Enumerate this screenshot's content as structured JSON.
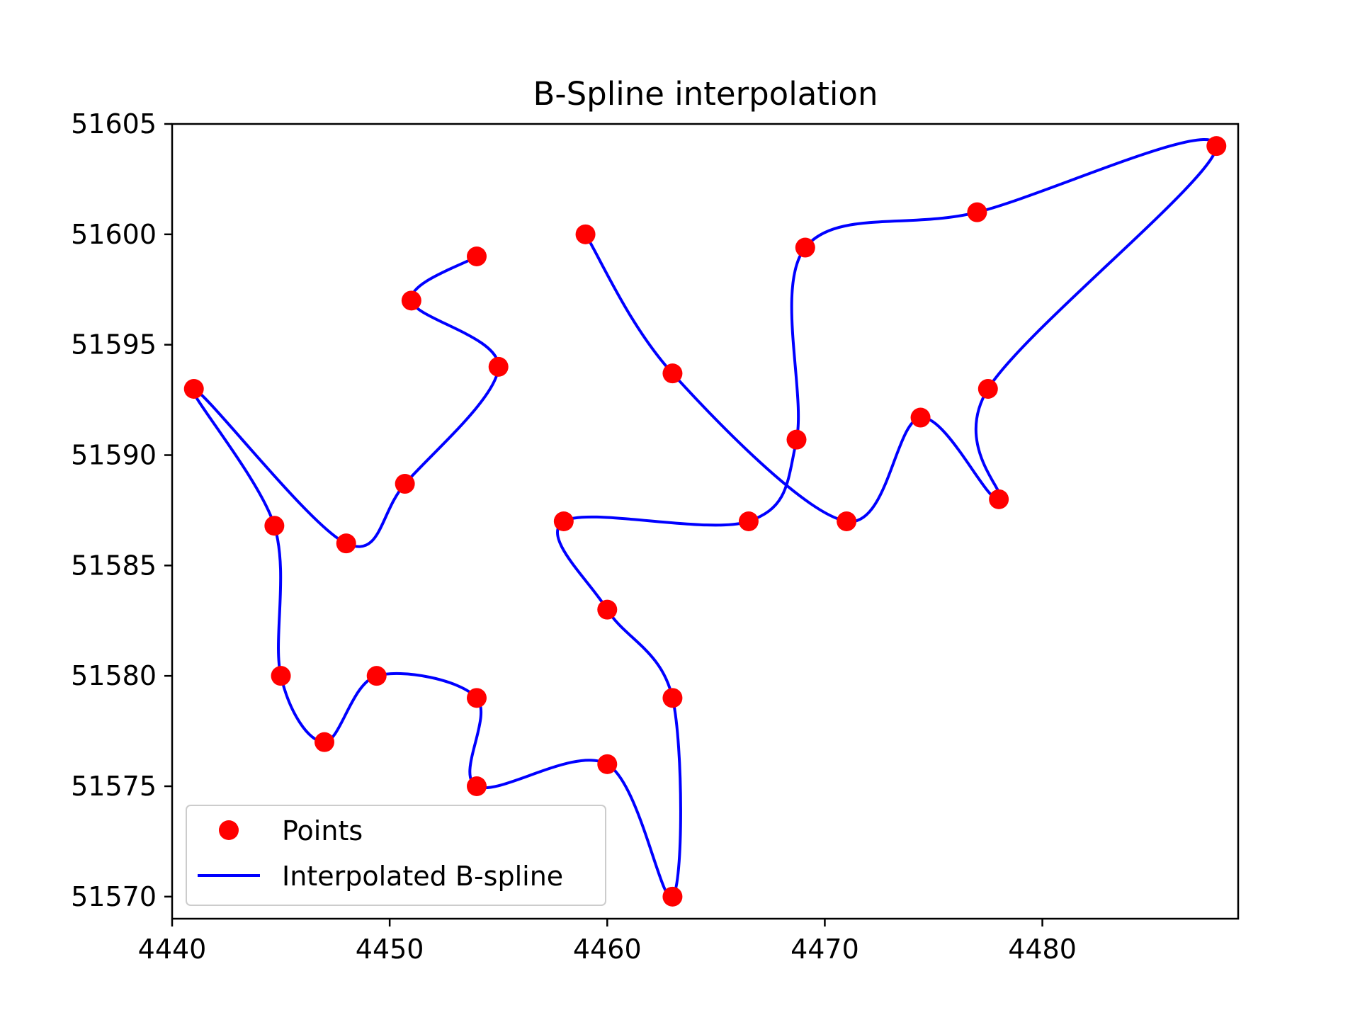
{
  "chart_data": {
    "type": "line",
    "title": "B-Spline interpolation",
    "xlabel": "",
    "ylabel": "",
    "xlim": [
      4440,
      4489
    ],
    "ylim": [
      51569,
      51605
    ],
    "xticks": [
      4440,
      4450,
      4460,
      4470,
      4480
    ],
    "yticks": [
      51570,
      51575,
      51580,
      51585,
      51590,
      51595,
      51600,
      51605
    ],
    "grid": false,
    "legend_position": "lower-left",
    "colors": {
      "points": "#ff0000",
      "spline": "#0000ff"
    },
    "series": [
      {
        "name": "Points",
        "kind": "scatter",
        "points": [
          [
            4441.0,
            51593.0
          ],
          [
            4448.0,
            51586.0
          ],
          [
            4450.7,
            51588.7
          ],
          [
            4455.0,
            51594.0
          ],
          [
            4451.0,
            51597.0
          ],
          [
            4454.0,
            51599.0
          ],
          [
            4444.7,
            51586.8
          ],
          [
            4445.0,
            51580.0
          ],
          [
            4447.0,
            51577.0
          ],
          [
            4449.4,
            51580.0
          ],
          [
            4454.0,
            51579.0
          ],
          [
            4454.0,
            51575.0
          ],
          [
            4460.0,
            51576.0
          ],
          [
            4463.0,
            51570.0
          ],
          [
            4463.0,
            51579.0
          ],
          [
            4460.0,
            51583.0
          ],
          [
            4458.0,
            51587.0
          ],
          [
            4466.5,
            51587.0
          ],
          [
            4468.7,
            51590.7
          ],
          [
            4469.1,
            51599.4
          ],
          [
            4477.0,
            51601.0
          ],
          [
            4488.0,
            51604.0
          ],
          [
            4477.5,
            51593.0
          ],
          [
            4478.0,
            51588.0
          ],
          [
            4474.4,
            51591.7
          ],
          [
            4471.0,
            51587.0
          ],
          [
            4463.0,
            51593.7
          ],
          [
            4459.0,
            51600.0
          ]
        ]
      },
      {
        "name": "Interpolated B-spline",
        "kind": "line",
        "path_order": [
          5,
          4,
          3,
          2,
          1,
          0,
          6,
          7,
          8,
          9,
          10,
          11,
          12,
          13,
          14,
          15,
          16,
          17,
          18,
          19,
          20,
          21,
          22,
          23,
          24,
          25,
          26,
          27
        ]
      }
    ]
  }
}
